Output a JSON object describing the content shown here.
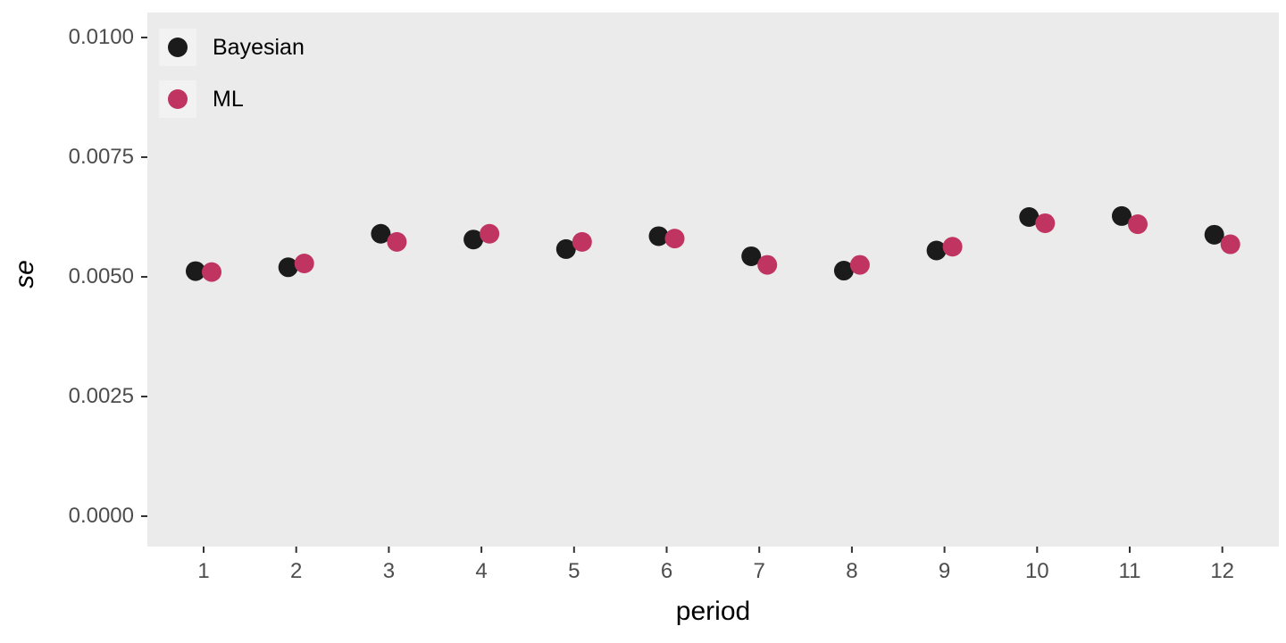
{
  "chart_data": {
    "type": "scatter",
    "title": "",
    "xlabel": "period",
    "ylabel": "se",
    "x": [
      1,
      2,
      3,
      4,
      5,
      6,
      7,
      8,
      9,
      10,
      11,
      12
    ],
    "series": [
      {
        "name": "Bayesian",
        "color": "#1b1b1b",
        "values": [
          0.00512,
          0.0052,
          0.0059,
          0.00578,
          0.00558,
          0.00585,
          0.00543,
          0.00513,
          0.00555,
          0.00625,
          0.00627,
          0.00588
        ]
      },
      {
        "name": "ML",
        "color": "#C03461",
        "values": [
          0.0051,
          0.00528,
          0.00573,
          0.0059,
          0.00573,
          0.0058,
          0.00525,
          0.00525,
          0.00563,
          0.00612,
          0.0061,
          0.00568
        ]
      }
    ],
    "y_ticks": [
      {
        "value": 0.0,
        "label": "0.0000"
      },
      {
        "value": 0.0025,
        "label": "0.0025"
      },
      {
        "value": 0.005,
        "label": "0.0050"
      },
      {
        "value": 0.0075,
        "label": "0.0075"
      },
      {
        "value": 0.01,
        "label": "0.0100"
      }
    ],
    "x_ticks": [
      1,
      2,
      3,
      4,
      5,
      6,
      7,
      8,
      9,
      10,
      11,
      12
    ],
    "ylim": [
      0,
      0.0105
    ],
    "grid": false,
    "legend_position": "top-left-inside",
    "panel_background": "#EBEBEB",
    "legend_key_background": "#F2F2F2",
    "tick_label_color": "#4d4d4d",
    "dodge": true
  }
}
